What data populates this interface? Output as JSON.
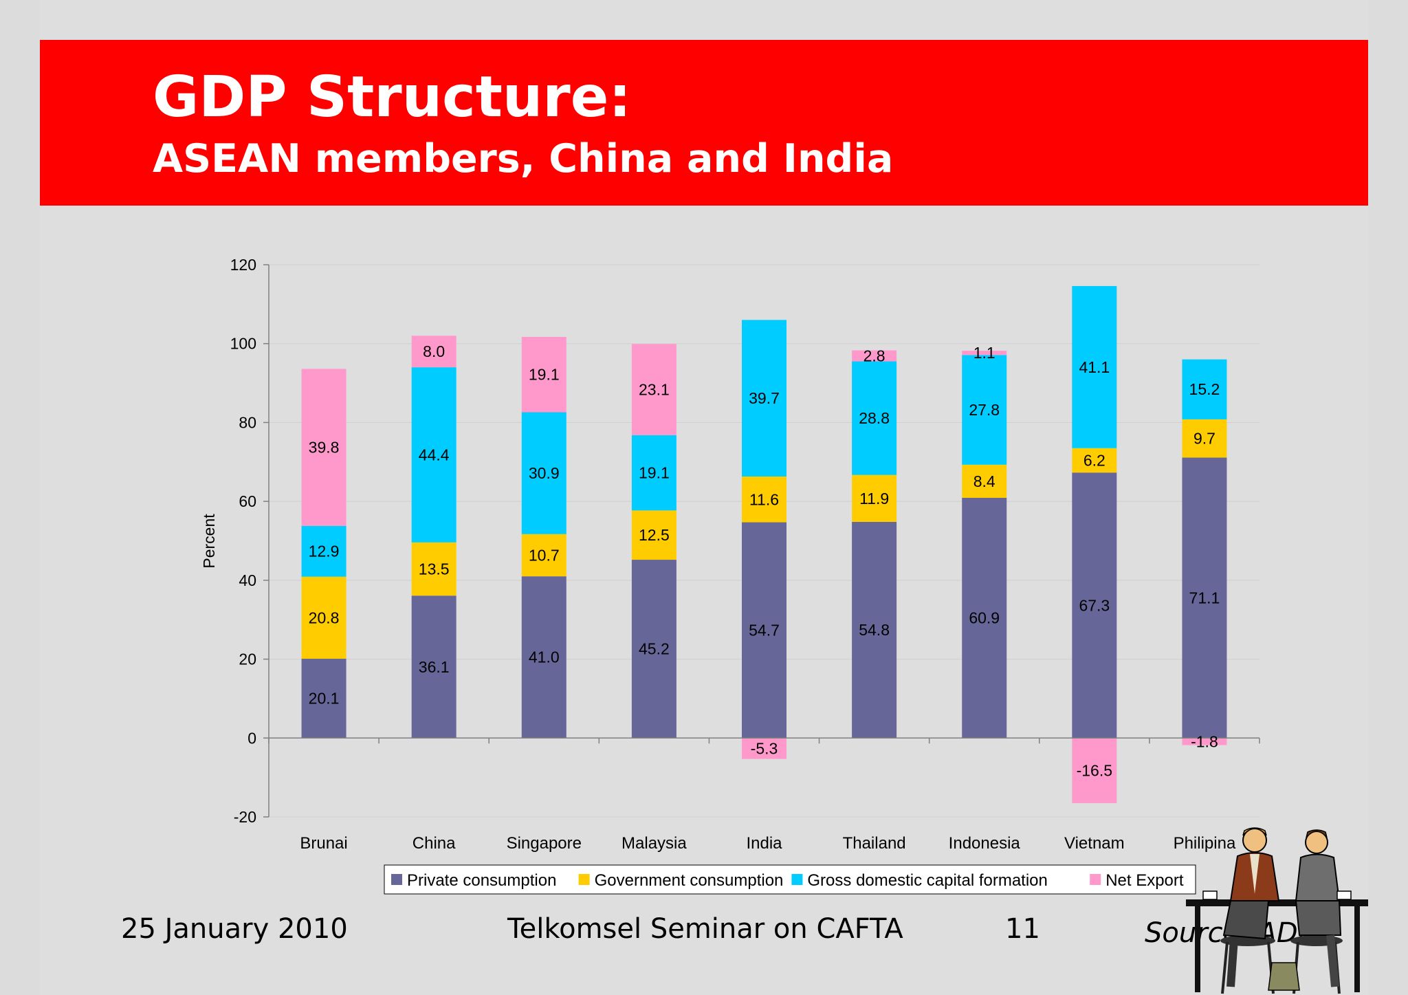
{
  "slide": {
    "title": "GDP Structure:",
    "subtitle": "ASEAN members, China and India",
    "footer_date": "25 January 2010",
    "footer_title": "Telkomsel Seminar on CAFTA",
    "page_number": "11",
    "source": "Source: ADB",
    "colors": {
      "banner": "#ff0000",
      "background": "#dedede"
    }
  },
  "chart_data": {
    "type": "bar",
    "stacked": true,
    "ylabel": "Percent",
    "xlabel": "",
    "ylim": [
      -20,
      120
    ],
    "yticks": [
      -20,
      0,
      20,
      40,
      60,
      80,
      100,
      120
    ],
    "grid": true,
    "legend_position": "bottom",
    "categories": [
      "Brunai",
      "China",
      "Singapore",
      "Malaysia",
      "India",
      "Thailand",
      "Indonesia",
      "Vietnam",
      "Philipina"
    ],
    "series": [
      {
        "name": "Private consumption",
        "color": "#666699",
        "values": [
          20.1,
          36.1,
          41.0,
          45.2,
          54.7,
          54.8,
          60.9,
          67.3,
          71.1
        ]
      },
      {
        "name": "Government consumption",
        "color": "#ffcc00",
        "values": [
          20.8,
          13.5,
          10.7,
          12.5,
          11.6,
          11.9,
          8.4,
          6.2,
          9.7
        ]
      },
      {
        "name": "Gross domestic capital formation",
        "color": "#00ccff",
        "values": [
          12.9,
          44.4,
          30.9,
          19.1,
          39.7,
          28.8,
          27.8,
          41.1,
          15.2
        ]
      },
      {
        "name": "Net Export",
        "color": "#ff99cc",
        "values": [
          39.8,
          8.0,
          19.1,
          23.1,
          -5.3,
          2.8,
          1.1,
          -16.5,
          -1.8
        ]
      }
    ]
  }
}
